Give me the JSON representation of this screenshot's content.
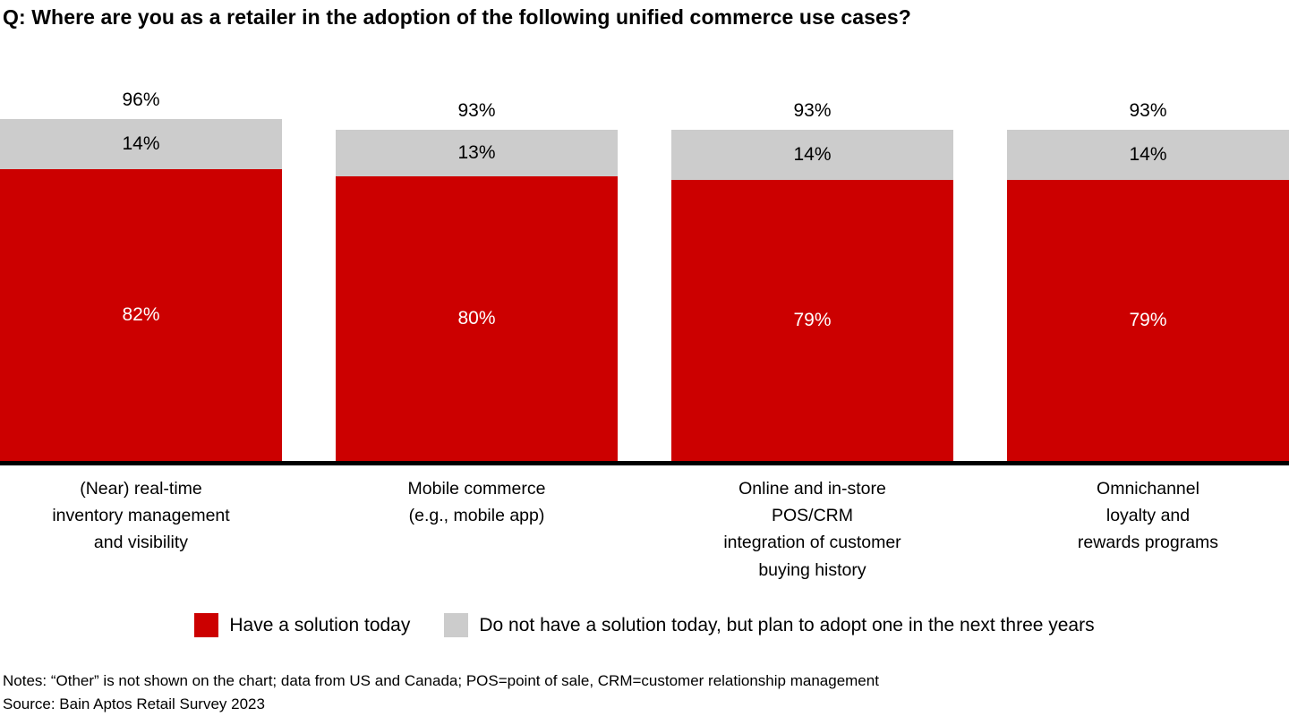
{
  "title": "Q: Where are you as a retailer in the adoption of the following unified commerce use cases?",
  "chart_data": {
    "type": "bar",
    "stacked": true,
    "orientation": "vertical",
    "categories": [
      "(Near) real-time\ninventory management\nand visibility",
      "Mobile commerce\n(e.g., mobile app)",
      "Online and in-store\nPOS/CRM\nintegration of customer\nbuying history",
      "Omnichannel\nloyalty and\nrewards programs"
    ],
    "series": [
      {
        "name": "Have a solution today",
        "color": "#cc0000",
        "label_color": "#ffffff",
        "values": [
          82,
          80,
          79,
          79
        ]
      },
      {
        "name": "Do not have a solution today, but plan to adopt one in the next three years",
        "color": "#cccccc",
        "label_color": "#000000",
        "values": [
          14,
          13,
          14,
          14
        ]
      }
    ],
    "totals": [
      96,
      93,
      93,
      93
    ],
    "value_suffix": "%",
    "ylim": [
      0,
      100
    ],
    "grid": false,
    "legend_position": "bottom",
    "axis_color": "#000000"
  },
  "notes": "Notes: “Other” is not shown on the chart; data from US and Canada; POS=point of sale, CRM=customer relationship management",
  "source": "Source: Bain Aptos Retail Survey 2023"
}
